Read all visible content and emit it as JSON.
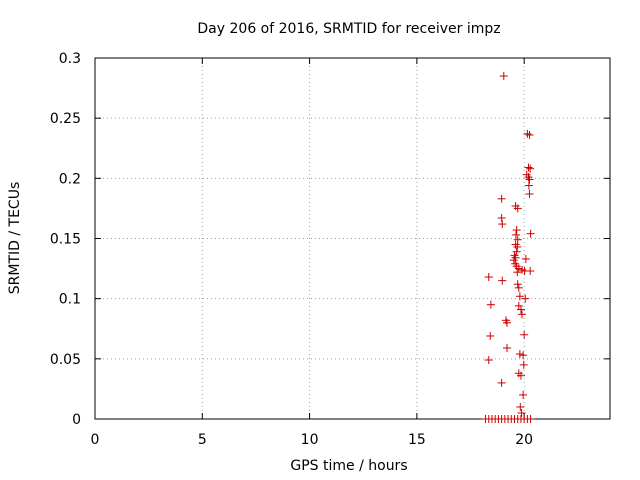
{
  "chart_data": {
    "type": "scatter",
    "title": "Day 206 of 2016, SRMTID for receiver impz",
    "xlabel": "GPS time / hours",
    "ylabel": "SRMTID / TECUs",
    "xlim": [
      0,
      24
    ],
    "ylim": [
      0,
      0.3
    ],
    "xticks": [
      0,
      5,
      10,
      15,
      20
    ],
    "xtick_labels": [
      "0",
      "5",
      "10",
      "15",
      "20"
    ],
    "yticks": [
      0,
      0.05,
      0.1,
      0.15,
      0.2,
      0.25,
      0.3
    ],
    "ytick_labels": [
      "0",
      "0.05",
      "0.1",
      "0.15",
      "0.2",
      "0.25",
      "0.3"
    ],
    "grid": true,
    "marker": "+",
    "color": "#cc0000",
    "series": [
      {
        "name": "SRMTID",
        "points": [
          [
            19.05,
            0.285
          ],
          [
            20.15,
            0.237
          ],
          [
            20.25,
            0.236
          ],
          [
            20.2,
            0.209
          ],
          [
            20.28,
            0.208
          ],
          [
            20.12,
            0.203
          ],
          [
            20.2,
            0.201
          ],
          [
            20.25,
            0.199
          ],
          [
            20.22,
            0.194
          ],
          [
            20.25,
            0.187
          ],
          [
            18.95,
            0.183
          ],
          [
            19.6,
            0.177
          ],
          [
            19.7,
            0.175
          ],
          [
            18.95,
            0.167
          ],
          [
            18.98,
            0.162
          ],
          [
            19.65,
            0.157
          ],
          [
            19.62,
            0.153
          ],
          [
            20.3,
            0.154
          ],
          [
            19.7,
            0.149
          ],
          [
            19.6,
            0.145
          ],
          [
            19.68,
            0.143
          ],
          [
            19.65,
            0.139
          ],
          [
            19.55,
            0.136
          ],
          [
            19.6,
            0.134
          ],
          [
            19.52,
            0.132
          ],
          [
            19.58,
            0.129
          ],
          [
            19.65,
            0.127
          ],
          [
            20.08,
            0.133
          ],
          [
            19.75,
            0.125
          ],
          [
            19.68,
            0.122
          ],
          [
            19.9,
            0.124
          ],
          [
            20.02,
            0.123
          ],
          [
            20.28,
            0.123
          ],
          [
            18.35,
            0.118
          ],
          [
            18.98,
            0.115
          ],
          [
            19.7,
            0.112
          ],
          [
            19.75,
            0.109
          ],
          [
            19.8,
            0.102
          ],
          [
            20.05,
            0.1
          ],
          [
            18.45,
            0.095
          ],
          [
            19.75,
            0.094
          ],
          [
            19.85,
            0.091
          ],
          [
            19.9,
            0.087
          ],
          [
            19.15,
            0.082
          ],
          [
            19.2,
            0.08
          ],
          [
            20.0,
            0.07
          ],
          [
            18.42,
            0.069
          ],
          [
            19.2,
            0.059
          ],
          [
            19.8,
            0.054
          ],
          [
            19.95,
            0.053
          ],
          [
            18.35,
            0.049
          ],
          [
            19.98,
            0.045
          ],
          [
            19.75,
            0.038
          ],
          [
            19.85,
            0.036
          ],
          [
            18.95,
            0.03
          ],
          [
            19.95,
            0.02
          ],
          [
            19.82,
            0.01
          ],
          [
            19.88,
            0.005
          ],
          [
            18.2,
            0.0
          ],
          [
            18.35,
            0.0
          ],
          [
            18.5,
            0.0
          ],
          [
            18.65,
            0.0
          ],
          [
            18.8,
            0.0
          ],
          [
            18.95,
            0.0
          ],
          [
            19.1,
            0.0
          ],
          [
            19.25,
            0.0
          ],
          [
            19.4,
            0.0
          ],
          [
            19.55,
            0.0
          ],
          [
            19.7,
            0.0
          ],
          [
            19.85,
            0.0
          ],
          [
            20.0,
            0.0
          ],
          [
            20.15,
            0.0
          ],
          [
            20.3,
            0.0
          ]
        ]
      }
    ]
  }
}
